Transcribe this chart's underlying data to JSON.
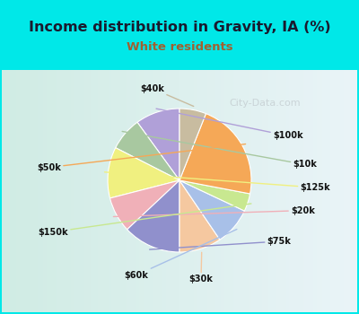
{
  "title": "Income distribution in Gravity, IA (%)",
  "subtitle": "White residents",
  "labels": [
    "$100k",
    "$10k",
    "$125k",
    "$20k",
    "$75k",
    "$30k",
    "$60k",
    "$150k",
    "$50k",
    "$40k"
  ],
  "sizes": [
    10.0,
    7.5,
    11.5,
    8.0,
    13.0,
    9.5,
    8.5,
    4.0,
    22.0,
    6.0
  ],
  "colors": [
    "#b0a0d8",
    "#a8c8a0",
    "#f0f080",
    "#f0b0b8",
    "#9090cc",
    "#f5c8a0",
    "#a8c0e8",
    "#c8e890",
    "#f5a857",
    "#c8bca0"
  ],
  "bg_outer": "#00e8e8",
  "bg_chart_left": "#d8ede0",
  "bg_chart_right": "#e8f4f8",
  "title_color": "#1a1a2e",
  "subtitle_color": "#a06030",
  "label_color": "#111111",
  "startangle": 90,
  "wedge_linewidth": 0.8,
  "wedge_edgecolor": "#ffffff",
  "watermark": "City-Data.com",
  "watermark_color": "#c0c8cc",
  "label_fontsize": 7.0
}
